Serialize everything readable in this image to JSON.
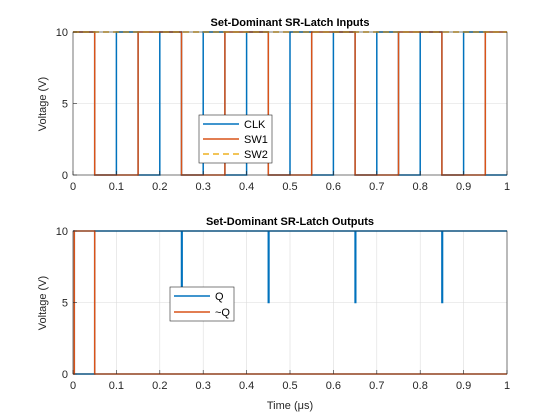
{
  "chart_data": [
    {
      "type": "line",
      "title": "Set-Dominant SR-Latch Inputs",
      "xlabel": "",
      "ylabel": "Voltage (V)",
      "xlim": [
        0,
        1
      ],
      "ylim": [
        0,
        10
      ],
      "xticks": [
        "0",
        "0.1",
        "0.2",
        "0.3",
        "0.4",
        "0.5",
        "0.6",
        "0.7",
        "0.8",
        "0.9",
        "1"
      ],
      "yticks": [
        "0",
        "5",
        "10"
      ],
      "grid": true,
      "legend_position": "center-left",
      "series": [
        {
          "name": "CLK",
          "color": "#0072BD",
          "dash": "solid",
          "x": [
            0,
            0.05,
            0.05,
            0.1,
            0.1,
            0.15,
            0.15,
            0.2,
            0.2,
            0.25,
            0.25,
            0.3,
            0.3,
            0.35,
            0.35,
            0.4,
            0.4,
            0.45,
            0.45,
            0.5,
            0.5,
            0.55,
            0.55,
            0.6,
            0.6,
            0.65,
            0.65,
            0.7,
            0.7,
            0.75,
            0.75,
            0.8,
            0.8,
            0.85,
            0.85,
            0.9,
            0.9,
            0.95,
            0.95,
            1
          ],
          "y": [
            10,
            10,
            0,
            0,
            10,
            10,
            0,
            0,
            10,
            10,
            0,
            0,
            10,
            10,
            0,
            0,
            10,
            10,
            0,
            0,
            10,
            10,
            0,
            0,
            10,
            10,
            0,
            0,
            10,
            10,
            0,
            0,
            10,
            10,
            0,
            0,
            10,
            10,
            0,
            0
          ]
        },
        {
          "name": "SW1",
          "color": "#D95319",
          "dash": "solid",
          "x": [
            0,
            0.05,
            0.05,
            0.15,
            0.15,
            0.25,
            0.25,
            0.35,
            0.35,
            0.45,
            0.45,
            0.55,
            0.55,
            0.65,
            0.65,
            0.75,
            0.75,
            0.85,
            0.85,
            0.95,
            0.95,
            1
          ],
          "y": [
            10,
            10,
            0,
            0,
            10,
            10,
            0,
            0,
            10,
            10,
            0,
            0,
            10,
            10,
            0,
            0,
            10,
            10,
            0,
            0,
            10,
            10
          ]
        },
        {
          "name": "SW2",
          "color": "#EDB120",
          "dash": "dashed",
          "x": [
            0,
            1
          ],
          "y": [
            10,
            10
          ]
        }
      ]
    },
    {
      "type": "line",
      "title": "Set-Dominant SR-Latch Outputs",
      "xlabel": "Time (μs)",
      "ylabel": "Voltage (V)",
      "xlim": [
        0,
        1
      ],
      "ylim": [
        0,
        10
      ],
      "xticks": [
        "0",
        "0.1",
        "0.2",
        "0.3",
        "0.4",
        "0.5",
        "0.6",
        "0.7",
        "0.8",
        "0.9",
        "1"
      ],
      "yticks": [
        "0",
        "5",
        "10"
      ],
      "grid": true,
      "legend_position": "center-left",
      "series": [
        {
          "name": "Q",
          "color": "#0072BD",
          "dash": "solid",
          "x": [
            0,
            0.003,
            0.003,
            0.05,
            0.05,
            0.25,
            0.25,
            0.2515,
            0.2515,
            0.45,
            0.45,
            0.4515,
            0.4515,
            0.65,
            0.65,
            0.6515,
            0.6515,
            0.85,
            0.85,
            0.8515,
            0.8515,
            1
          ],
          "y": [
            10,
            10,
            0,
            0,
            10,
            10,
            6,
            6,
            10,
            10,
            5,
            5,
            10,
            10,
            5,
            5,
            10,
            10,
            5,
            5,
            10,
            10
          ]
        },
        {
          "name": "~Q",
          "color": "#D95319",
          "dash": "solid",
          "x": [
            0,
            0.003,
            0.003,
            0.05,
            0.05,
            1
          ],
          "y": [
            0,
            0,
            10,
            10,
            0,
            0
          ]
        }
      ]
    }
  ]
}
